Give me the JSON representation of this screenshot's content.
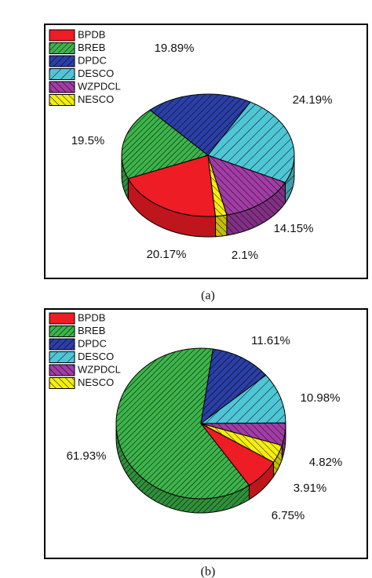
{
  "chart_data": [
    {
      "type": "pie",
      "caption": "(a)",
      "labels": [
        "BPDB",
        "BREB",
        "DPDC",
        "DESCO",
        "WZPDCL",
        "NESCO"
      ],
      "values": [
        20.17,
        19.5,
        19.89,
        24.19,
        14.15,
        2.1
      ],
      "value_labels": [
        "20.17%",
        "19.5%",
        "19.89%",
        "24.19%",
        "14.15%",
        "2.1%"
      ],
      "colors": [
        "#ee1c24",
        "#3cb44a",
        "#2b3fa6",
        "#4fc6d6",
        "#a23ca6",
        "#f4ee10"
      ]
    },
    {
      "type": "pie",
      "caption": "(b)",
      "labels": [
        "BPDB",
        "BREB",
        "DPDC",
        "DESCO",
        "WZPDCL",
        "NESCO"
      ],
      "values": [
        6.75,
        61.93,
        11.61,
        10.98,
        4.82,
        3.91
      ],
      "value_labels": [
        "6.75%",
        "61.93%",
        "11.61%",
        "10.98%",
        "4.82%",
        "3.91%"
      ],
      "colors": [
        "#ee1c24",
        "#3cb44a",
        "#2b3fa6",
        "#4fc6d6",
        "#a23ca6",
        "#f4ee10"
      ]
    }
  ]
}
